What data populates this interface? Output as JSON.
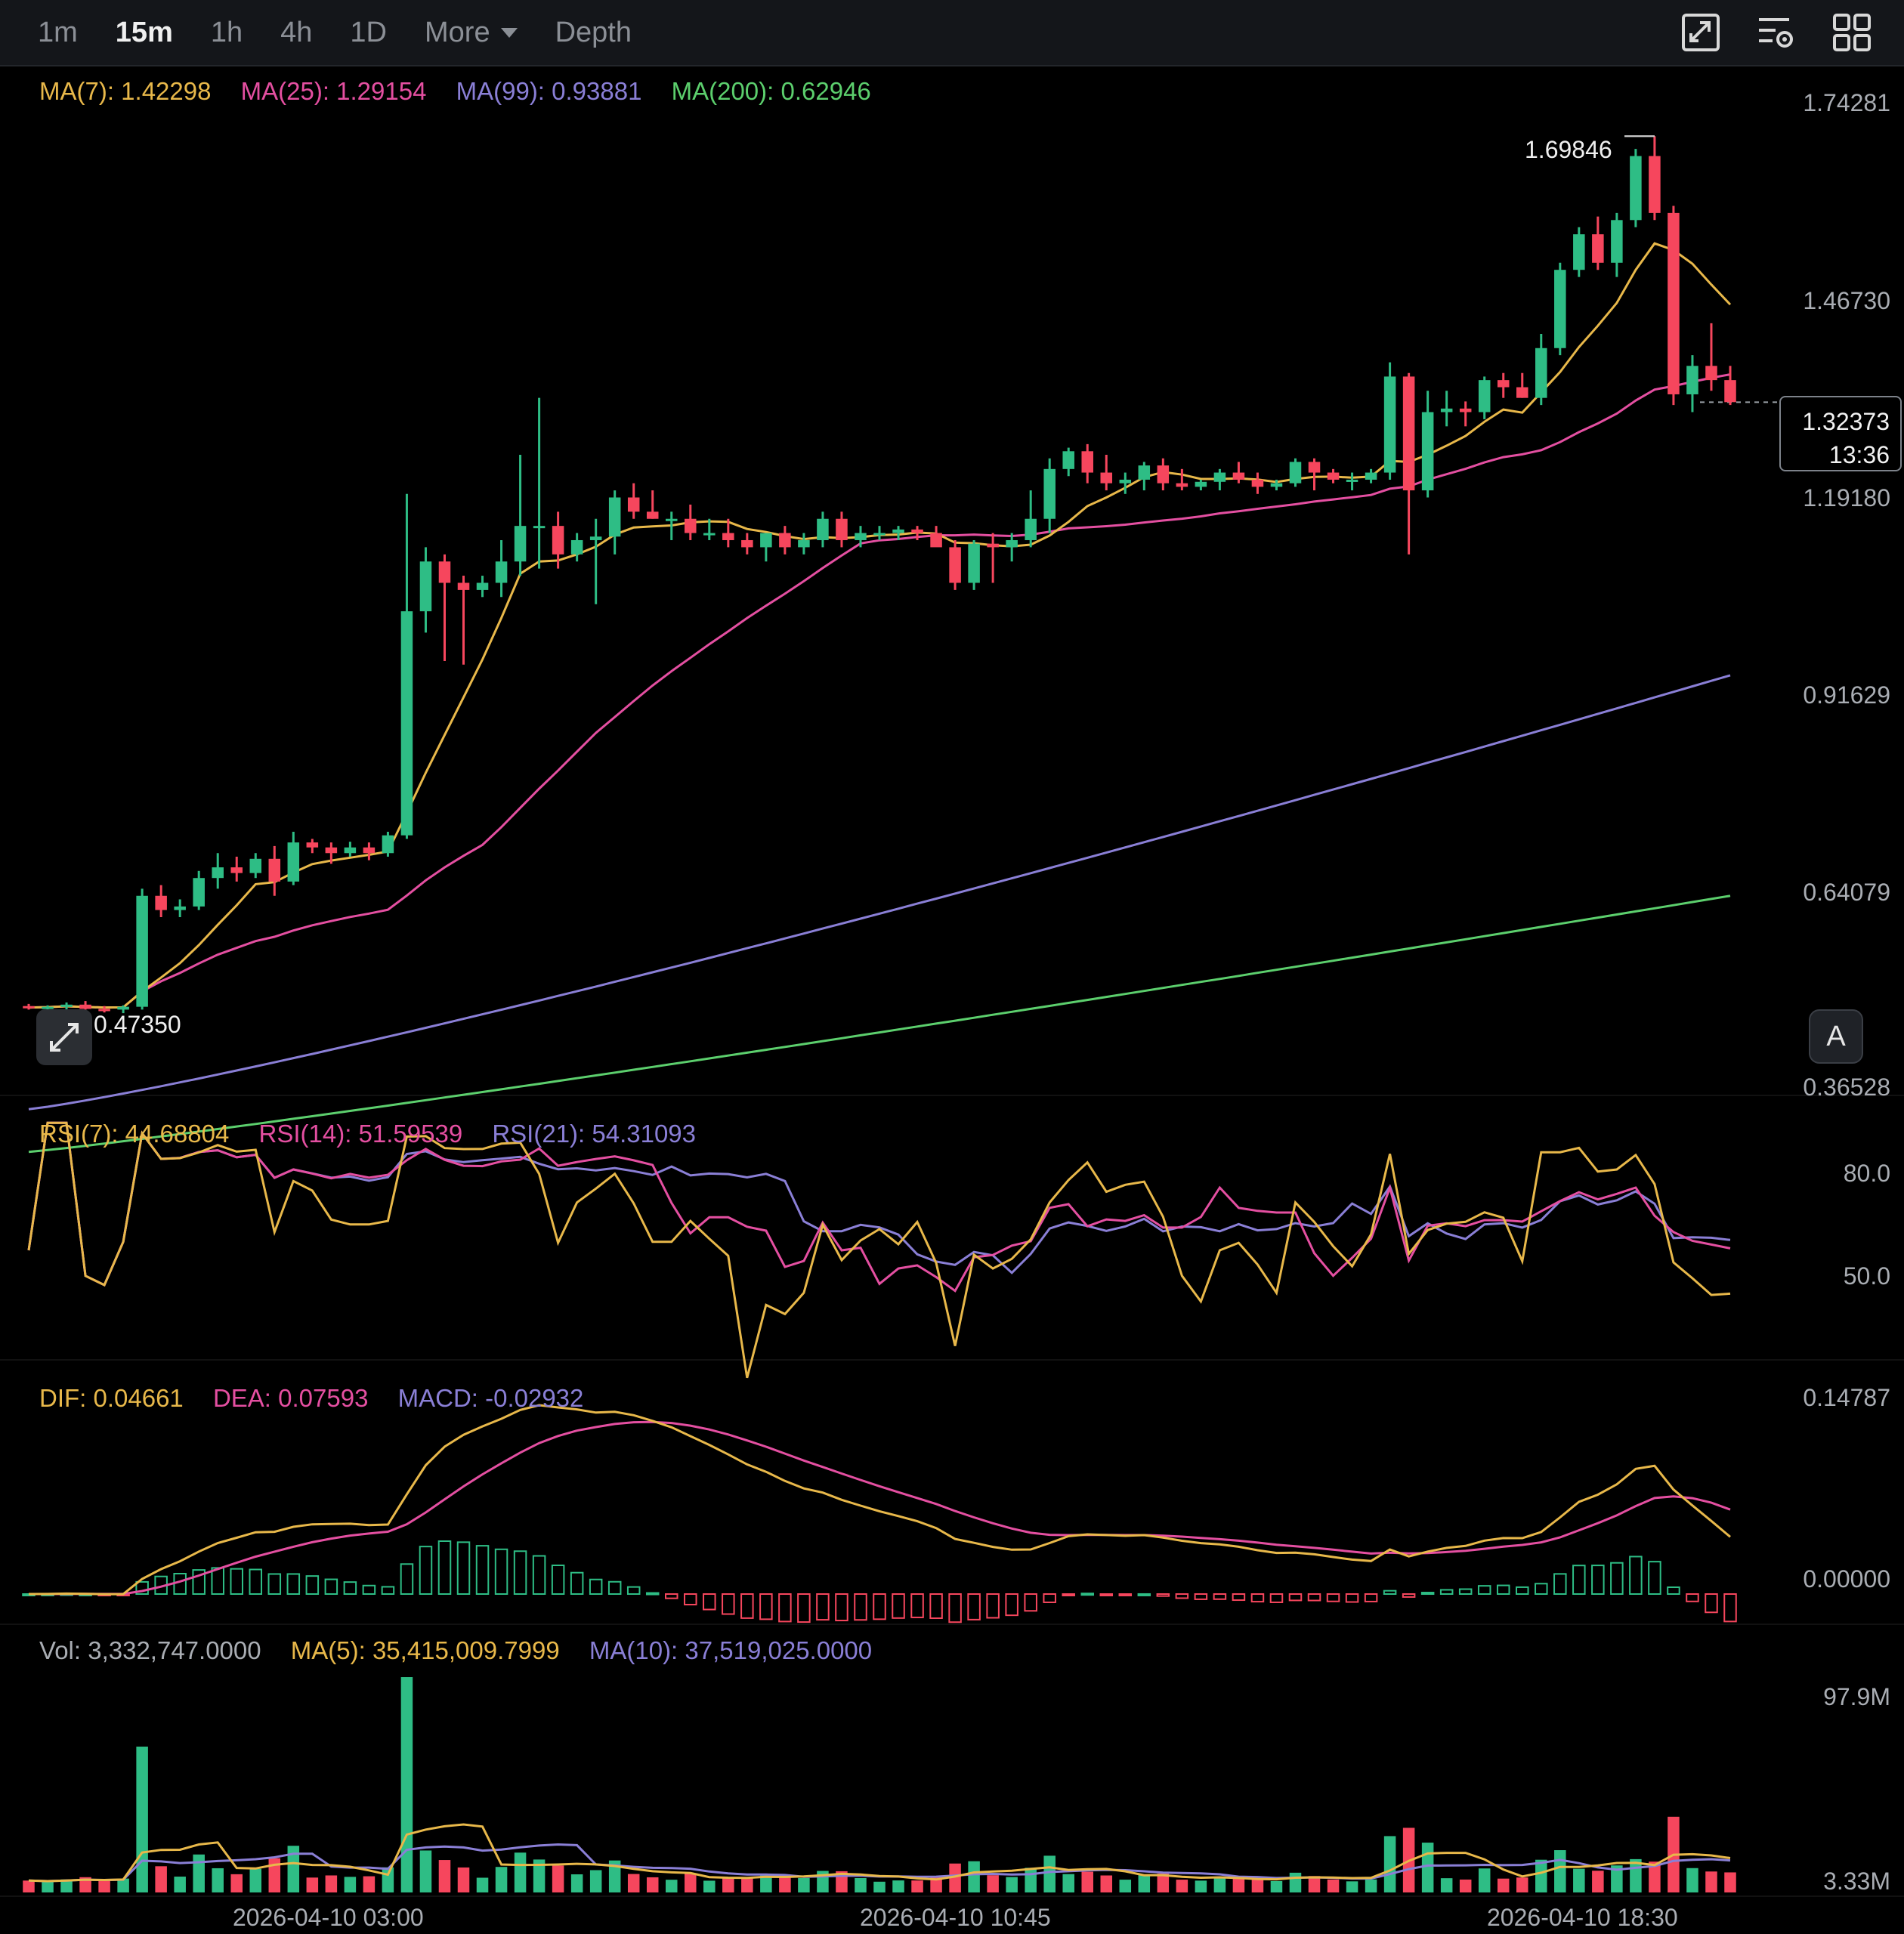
{
  "toolbar": {
    "intervals": [
      "1m",
      "15m",
      "1h",
      "4h",
      "1D"
    ],
    "active_interval": "15m",
    "more_label": "More",
    "depth_label": "Depth",
    "icons": [
      "fullscreen-chart-icon",
      "indicator-settings-icon",
      "layout-grid-icon"
    ]
  },
  "price_panel": {
    "ma_legend": [
      {
        "label": "MA(7): 1.42298",
        "color": "#e8b84a"
      },
      {
        "label": "MA(25): 1.29154",
        "color": "#e44fa1"
      },
      {
        "label": "MA(99): 0.93881",
        "color": "#8a7fd6"
      },
      {
        "label": "MA(200): 0.62946",
        "color": "#5ccf6d"
      }
    ],
    "axis_labels": [
      "1.74281",
      "1.46730",
      "1.19180",
      "0.91629",
      "0.64079",
      "0.36528"
    ],
    "high_label": "1.69846",
    "low_label": "0.47350",
    "current_price": "1.32373",
    "countdown": "13:36",
    "auto_scale_label": "A"
  },
  "rsi_panel": {
    "legend": [
      {
        "label": "RSI(7): 44.68804",
        "color": "#e8b84a"
      },
      {
        "label": "RSI(14): 51.59539",
        "color": "#e44fa1"
      },
      {
        "label": "RSI(21): 54.31093",
        "color": "#8a7fd6"
      }
    ],
    "axis_labels": [
      "80.0",
      "50.0"
    ]
  },
  "macd_panel": {
    "legend": [
      {
        "label": "DIF: 0.04661",
        "color": "#e8b84a"
      },
      {
        "label": "DEA: 0.07593",
        "color": "#e44fa1"
      },
      {
        "label": "MACD: -0.02932",
        "color": "#8a7fd6"
      }
    ],
    "axis_labels": [
      "0.14787",
      "0.00000"
    ]
  },
  "volume_panel": {
    "legend": [
      {
        "label": "Vol: 3,332,747.0000",
        "color": "#a9adb3"
      },
      {
        "label": "MA(5): 35,415,009.7999",
        "color": "#e8b84a"
      },
      {
        "label": "MA(10): 37,519,025.0000",
        "color": "#8a7fd6"
      }
    ],
    "axis_labels": [
      "97.9M",
      "3.33M"
    ]
  },
  "time_labels": [
    "2026-04-10 03:00",
    "2026-04-10 10:45",
    "2026-04-10 18:30"
  ],
  "colors": {
    "up": "#2ebd85",
    "down": "#f6465d",
    "ma7": "#e8b84a",
    "ma25": "#e44fa1",
    "ma99": "#8a7fd6",
    "ma200": "#5ccf6d"
  },
  "chart_data": {
    "type": "candlestick",
    "ylim": [
      0.36528,
      1.74281
    ],
    "candles": [
      [
        0.475,
        0.478,
        0.47,
        0.473
      ],
      [
        0.473,
        0.476,
        0.47,
        0.474
      ],
      [
        0.474,
        0.48,
        0.47,
        0.477
      ],
      [
        0.477,
        0.482,
        0.47,
        0.471
      ],
      [
        0.471,
        0.475,
        0.466,
        0.47
      ],
      [
        0.47,
        0.476,
        0.465,
        0.474
      ],
      [
        0.474,
        0.64,
        0.47,
        0.63
      ],
      [
        0.63,
        0.645,
        0.6,
        0.61
      ],
      [
        0.61,
        0.625,
        0.6,
        0.615
      ],
      [
        0.615,
        0.665,
        0.61,
        0.655
      ],
      [
        0.655,
        0.69,
        0.64,
        0.67
      ],
      [
        0.67,
        0.685,
        0.65,
        0.662
      ],
      [
        0.662,
        0.69,
        0.655,
        0.682
      ],
      [
        0.682,
        0.7,
        0.63,
        0.65
      ],
      [
        0.65,
        0.72,
        0.645,
        0.705
      ],
      [
        0.705,
        0.71,
        0.69,
        0.698
      ],
      [
        0.698,
        0.705,
        0.675,
        0.69
      ],
      [
        0.69,
        0.706,
        0.685,
        0.698
      ],
      [
        0.698,
        0.705,
        0.68,
        0.69
      ],
      [
        0.69,
        0.72,
        0.685,
        0.715
      ],
      [
        0.715,
        1.195,
        0.71,
        1.03
      ],
      [
        1.03,
        1.12,
        1.0,
        1.1
      ],
      [
        1.1,
        1.11,
        0.96,
        1.07
      ],
      [
        1.07,
        1.08,
        0.955,
        1.06
      ],
      [
        1.06,
        1.08,
        1.05,
        1.07
      ],
      [
        1.07,
        1.13,
        1.05,
        1.1
      ],
      [
        1.1,
        1.25,
        1.08,
        1.15
      ],
      [
        1.15,
        1.33,
        1.09,
        1.15
      ],
      [
        1.15,
        1.17,
        1.09,
        1.11
      ],
      [
        1.11,
        1.14,
        1.1,
        1.13
      ],
      [
        1.13,
        1.16,
        1.04,
        1.135
      ],
      [
        1.135,
        1.2,
        1.11,
        1.19
      ],
      [
        1.19,
        1.21,
        1.16,
        1.17
      ],
      [
        1.17,
        1.2,
        1.16,
        1.16
      ],
      [
        1.16,
        1.17,
        1.13,
        1.16
      ],
      [
        1.16,
        1.18,
        1.13,
        1.14
      ],
      [
        1.14,
        1.16,
        1.13,
        1.14
      ],
      [
        1.14,
        1.16,
        1.12,
        1.13
      ],
      [
        1.13,
        1.14,
        1.11,
        1.12
      ],
      [
        1.12,
        1.14,
        1.1,
        1.14
      ],
      [
        1.14,
        1.15,
        1.11,
        1.12
      ],
      [
        1.12,
        1.14,
        1.11,
        1.13
      ],
      [
        1.13,
        1.17,
        1.12,
        1.16
      ],
      [
        1.16,
        1.17,
        1.12,
        1.13
      ],
      [
        1.13,
        1.15,
        1.12,
        1.14
      ],
      [
        1.14,
        1.15,
        1.13,
        1.14
      ],
      [
        1.14,
        1.15,
        1.13,
        1.145
      ],
      [
        1.145,
        1.15,
        1.13,
        1.14
      ],
      [
        1.14,
        1.15,
        1.13,
        1.12
      ],
      [
        1.12,
        1.13,
        1.06,
        1.07
      ],
      [
        1.07,
        1.13,
        1.06,
        1.125
      ],
      [
        1.125,
        1.14,
        1.07,
        1.12
      ],
      [
        1.12,
        1.14,
        1.1,
        1.13
      ],
      [
        1.13,
        1.2,
        1.12,
        1.16
      ],
      [
        1.16,
        1.245,
        1.14,
        1.23
      ],
      [
        1.23,
        1.26,
        1.22,
        1.255
      ],
      [
        1.255,
        1.265,
        1.21,
        1.225
      ],
      [
        1.225,
        1.25,
        1.2,
        1.21
      ],
      [
        1.21,
        1.225,
        1.195,
        1.215
      ],
      [
        1.215,
        1.24,
        1.2,
        1.235
      ],
      [
        1.235,
        1.245,
        1.2,
        1.21
      ],
      [
        1.21,
        1.23,
        1.2,
        1.205
      ],
      [
        1.205,
        1.215,
        1.2,
        1.212
      ],
      [
        1.212,
        1.23,
        1.2,
        1.225
      ],
      [
        1.225,
        1.24,
        1.21,
        1.215
      ],
      [
        1.215,
        1.225,
        1.195,
        1.205
      ],
      [
        1.205,
        1.215,
        1.2,
        1.21
      ],
      [
        1.21,
        1.245,
        1.205,
        1.24
      ],
      [
        1.24,
        1.245,
        1.2,
        1.225
      ],
      [
        1.225,
        1.23,
        1.21,
        1.215
      ],
      [
        1.215,
        1.225,
        1.2,
        1.215
      ],
      [
        1.215,
        1.23,
        1.21,
        1.225
      ],
      [
        1.225,
        1.38,
        1.215,
        1.36
      ],
      [
        1.36,
        1.365,
        1.11,
        1.2
      ],
      [
        1.2,
        1.34,
        1.19,
        1.31
      ],
      [
        1.31,
        1.34,
        1.29,
        1.315
      ],
      [
        1.315,
        1.325,
        1.29,
        1.31
      ],
      [
        1.31,
        1.36,
        1.3,
        1.355
      ],
      [
        1.355,
        1.365,
        1.33,
        1.345
      ],
      [
        1.345,
        1.365,
        1.33,
        1.33
      ],
      [
        1.33,
        1.42,
        1.32,
        1.4
      ],
      [
        1.4,
        1.52,
        1.39,
        1.51
      ],
      [
        1.51,
        1.57,
        1.5,
        1.56
      ],
      [
        1.56,
        1.585,
        1.51,
        1.52
      ],
      [
        1.52,
        1.59,
        1.5,
        1.58
      ],
      [
        1.58,
        1.68,
        1.57,
        1.67
      ],
      [
        1.67,
        1.698,
        1.58,
        1.59
      ],
      [
        1.59,
        1.6,
        1.32,
        1.335
      ],
      [
        1.335,
        1.39,
        1.31,
        1.375
      ],
      [
        1.375,
        1.435,
        1.34,
        1.355
      ],
      [
        1.355,
        1.375,
        1.32,
        1.324
      ]
    ],
    "ma_series": {
      "MA(7)": "overlay line",
      "MA(25)": "overlay line",
      "MA(99)": "overlay line",
      "MA(200)": "overlay line"
    }
  }
}
